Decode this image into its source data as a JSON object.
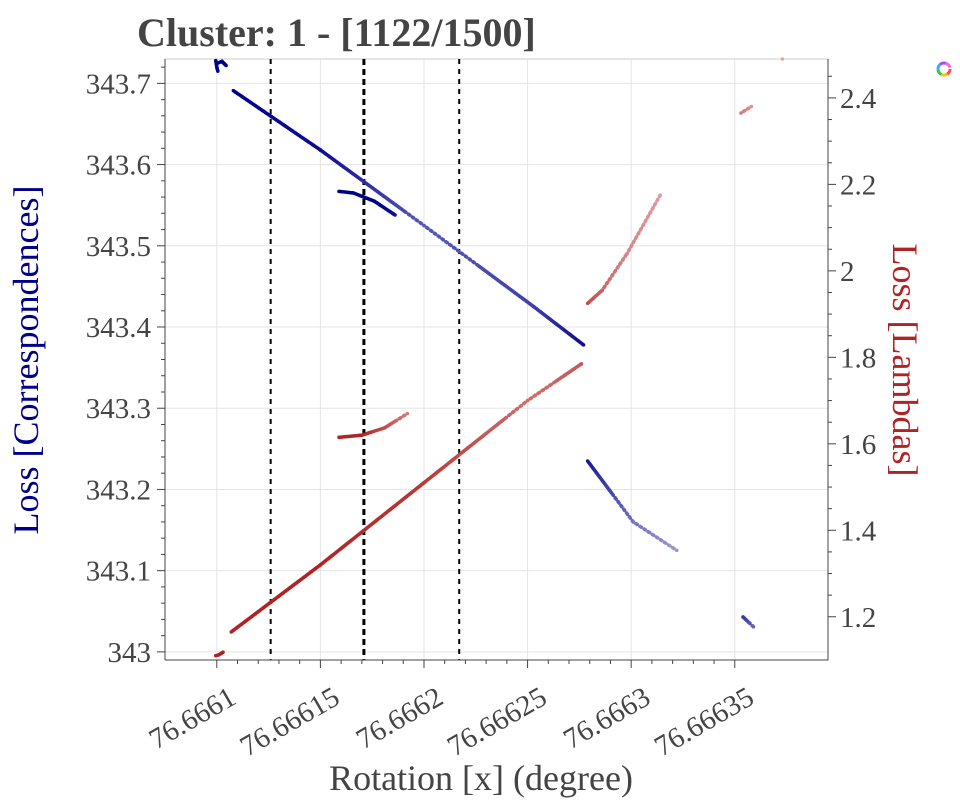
{
  "chart_data": {
    "type": "scatter",
    "title": "Cluster: 1 - [1122/1500]",
    "xlabel": "Rotation [x] (degree)",
    "ylabel": "Loss [Correspondences]",
    "y2label": "Loss [Lambdas]",
    "xlim": [
      76.666075,
      76.666395
    ],
    "ylim": [
      342.99,
      343.73
    ],
    "y2lim": [
      1.1,
      2.49
    ],
    "x_ticks": [
      "76.6661",
      "76.66615",
      "76.6662",
      "76.66625",
      "76.6663",
      "76.66635"
    ],
    "x_tick_values": [
      76.6661,
      76.66615,
      76.6662,
      76.66625,
      76.6663,
      76.66635
    ],
    "y_ticks": [
      "343",
      "343.1",
      "343.2",
      "343.3",
      "343.4",
      "343.5",
      "343.6",
      "343.7"
    ],
    "y_tick_values": [
      343,
      343.1,
      343.2,
      343.3,
      343.4,
      343.5,
      343.6,
      343.7
    ],
    "y2_ticks": [
      "1.2",
      "1.4",
      "1.6",
      "1.8",
      "2",
      "2.2",
      "2.4"
    ],
    "y2_tick_values": [
      1.2,
      1.4,
      1.6,
      1.8,
      2.0,
      2.2,
      2.4
    ],
    "vlines": [
      {
        "x": 76.666126,
        "style": "dashed",
        "emphasis": "normal"
      },
      {
        "x": 76.666171,
        "style": "dashed",
        "emphasis": "bold"
      },
      {
        "x": 76.666217,
        "style": "dashed",
        "emphasis": "normal"
      }
    ],
    "grid": true,
    "legend": "none",
    "colors": {
      "correspondences": "#00008b",
      "lambdas": "#b22222",
      "vline": "#000000",
      "text": "#444444",
      "grid": "#e5e5e5"
    },
    "series": [
      {
        "axis": "left",
        "color": "#00008b",
        "segments": [
          {
            "x": [
              76.6660995,
              76.6661,
              76.6661005
            ],
            "y": [
              343.728,
              343.72,
              343.715
            ],
            "fade": [
              0,
              0,
              0
            ]
          },
          {
            "x": [
              76.6661005,
              76.6661025,
              76.6661045
            ],
            "y": [
              343.725,
              343.727,
              343.722
            ],
            "fade": [
              0,
              0,
              0
            ]
          },
          {
            "x": [
              76.666108,
              76.66615,
              76.6662,
              76.666253
            ],
            "y": [
              343.691,
              343.618,
              343.525,
              343.425
            ],
            "fade": [
              0,
              0.05,
              0.35,
              0.25
            ]
          },
          {
            "x": [
              76.666253,
              76.666277
            ],
            "y": [
              343.425,
              343.378
            ],
            "fade": [
              0.25,
              0.05
            ]
          },
          {
            "x": [
              76.666159,
              76.666166,
              76.666176,
              76.666186
            ],
            "y": [
              343.567,
              343.565,
              343.555,
              343.538
            ],
            "fade": [
              0,
              0,
              0,
              0.05
            ]
          },
          {
            "x": [
              76.666279,
              76.666301
            ],
            "y": [
              343.235,
              343.16
            ],
            "fade": [
              0.1,
              0.45
            ]
          },
          {
            "x": [
              76.666301,
              76.666322
            ],
            "y": [
              343.16,
              343.125
            ],
            "fade": [
              0.45,
              0.6
            ]
          },
          {
            "x": [
              76.666354,
              76.666359
            ],
            "y": [
              343.043,
              343.031
            ],
            "fade": [
              0.2,
              0.4
            ]
          }
        ]
      },
      {
        "axis": "right",
        "color": "#b22222",
        "segments": [
          {
            "x": [
              76.6660995,
              76.666101,
              76.666103
            ],
            "y": [
              1.11,
              1.112,
              1.118
            ],
            "fade": [
              0,
              0,
              0
            ]
          },
          {
            "x": [
              76.666107,
              76.66615,
              76.6662,
              76.66625,
              76.666276
            ],
            "y": [
              1.165,
              1.32,
              1.51,
              1.7,
              1.785
            ],
            "fade": [
              0,
              0,
              0.1,
              0.35,
              0.25
            ]
          },
          {
            "x": [
              76.666159,
              76.66617,
              76.666181,
              76.666192
            ],
            "y": [
              1.615,
              1.62,
              1.637,
              1.67
            ],
            "fade": [
              0,
              0,
              0.2,
              0.4
            ]
          },
          {
            "x": [
              76.666279,
              76.666286,
              76.666298,
              76.666314
            ],
            "y": [
              1.925,
              1.955,
              2.04,
              2.175
            ],
            "fade": [
              0.2,
              0.3,
              0.45,
              0.55
            ]
          },
          {
            "x": [
              76.666353,
              76.666358
            ],
            "y": [
              2.365,
              2.38
            ],
            "fade": [
              0.4,
              0.5
            ]
          },
          {
            "x": [
              76.666373
            ],
            "y": [
              2.49
            ],
            "fade": [
              0.6
            ]
          }
        ]
      }
    ]
  }
}
